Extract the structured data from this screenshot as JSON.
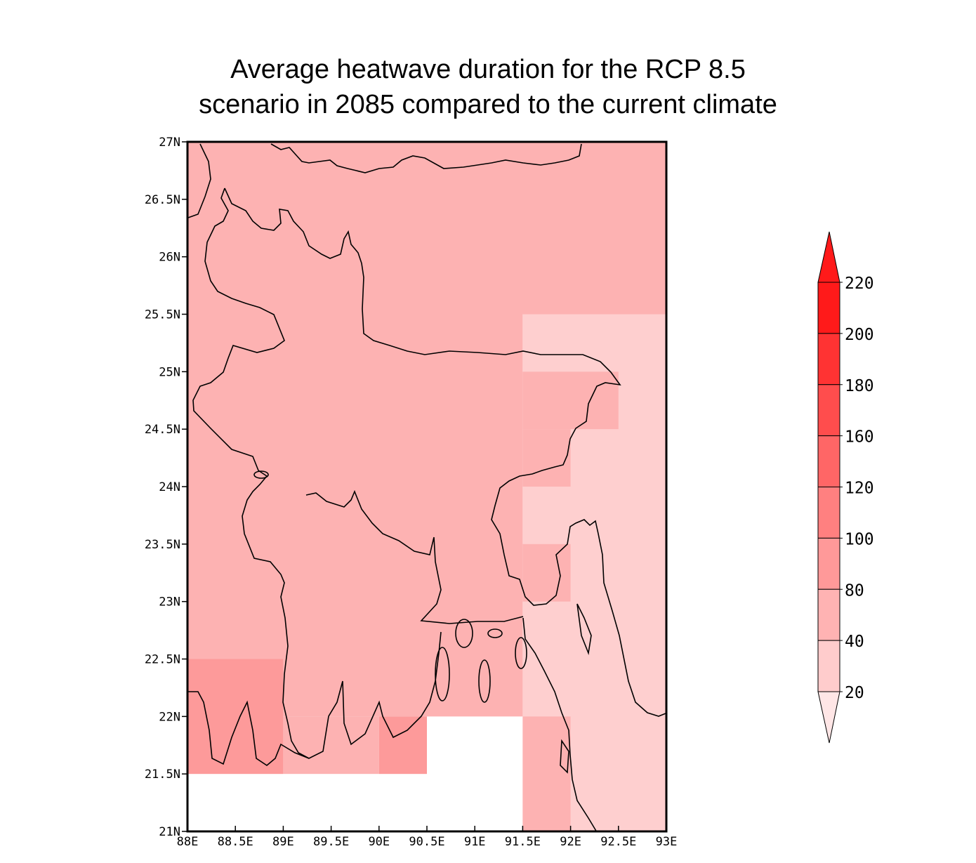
{
  "title": {
    "line1": "Average heatwave duration for the RCP 8.5",
    "line2": "scenario in 2085 compared to the current climate"
  },
  "map": {
    "region": "Bangladesh",
    "lon_range": [
      88,
      93
    ],
    "lat_range": [
      21,
      27
    ],
    "lon_ticks": [
      "88E",
      "88.5E",
      "89E",
      "89.5E",
      "90E",
      "90.5E",
      "91E",
      "91.5E",
      "92E",
      "92.5E",
      "93E"
    ],
    "lat_ticks": [
      "27N",
      "26.5N",
      "26N",
      "25.5N",
      "25N",
      "24.5N",
      "24N",
      "23.5N",
      "23N",
      "22.5N",
      "22N",
      "21.5N",
      "21N"
    ]
  },
  "colorbar": {
    "labels": [
      "220",
      "200",
      "180",
      "160",
      "120",
      "100",
      "80",
      "40",
      "20"
    ],
    "colors": [
      "#ff1a1a",
      "#ff3333",
      "#ff4d4d",
      "#ff6666",
      "#ff8080",
      "#ff9999",
      "#ffb3b3",
      "#ffcccc"
    ],
    "over_color": "#ff1a1a",
    "under_color": "#ffe6e6"
  },
  "chart_data": {
    "type": "heatmap",
    "cells": [
      {
        "lon": [
          88,
          93
        ],
        "lat": [
          25.5,
          27
        ],
        "color": "#fdb2b2"
      },
      {
        "lon": [
          88,
          91.5
        ],
        "lat": [
          22.5,
          25.5
        ],
        "color": "#fdb2b2"
      },
      {
        "lon": [
          91.5,
          93
        ],
        "lat": [
          21,
          25.5
        ],
        "color": "#fecfcf"
      },
      {
        "lon": [
          91.5,
          92.5
        ],
        "lat": [
          24.5,
          25.0
        ],
        "color": "#fdb2b2"
      },
      {
        "lon": [
          91.5,
          92.0
        ],
        "lat": [
          24.0,
          24.5
        ],
        "color": "#fdb2b2"
      },
      {
        "lon": [
          91.5,
          92.0
        ],
        "lat": [
          23.0,
          23.5
        ],
        "color": "#fdb2b2"
      },
      {
        "lon": [
          91.5,
          92.0
        ],
        "lat": [
          21.0,
          22.0
        ],
        "color": "#fdb2b2"
      },
      {
        "lon": [
          88,
          89
        ],
        "lat": [
          21.5,
          22.5
        ],
        "color": "#fd9a9a"
      },
      {
        "lon": [
          89,
          91.5
        ],
        "lat": [
          22,
          22.5
        ],
        "color": "#fdb2b2"
      },
      {
        "lon": [
          89,
          90
        ],
        "lat": [
          21.5,
          22
        ],
        "color": "#fdb2b2"
      },
      {
        "lon": [
          90,
          90.5
        ],
        "lat": [
          21.5,
          22
        ],
        "color": "#fd9a9a"
      }
    ]
  }
}
